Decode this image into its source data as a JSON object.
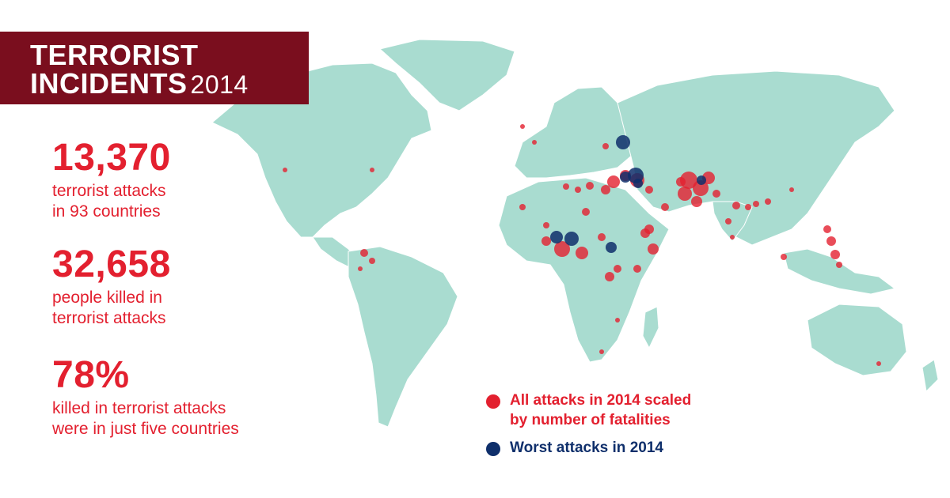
{
  "header": {
    "title_line1": "TERRORIST",
    "title_line2": "INCIDENTS",
    "year": "2014"
  },
  "stats": [
    {
      "value": "13,370",
      "description": "terrorist attacks\nin 93 countries"
    },
    {
      "value": "32,658",
      "description": "people killed in\nterrorist attacks"
    },
    {
      "value": "78%",
      "description": "killed in terrorist attacks\nwere in just five countries"
    }
  ],
  "legend": [
    {
      "label": "All attacks in 2014 scaled\nby number of fatalities",
      "color": "#e3202f"
    },
    {
      "label": "Worst attacks in 2014",
      "color": "#0f2f6b"
    }
  ],
  "colors": {
    "land": "#a9dcd0",
    "title_background": "#7a0e1e",
    "accent_red": "#e3202f",
    "accent_navy": "#0f2f6b"
  }
}
